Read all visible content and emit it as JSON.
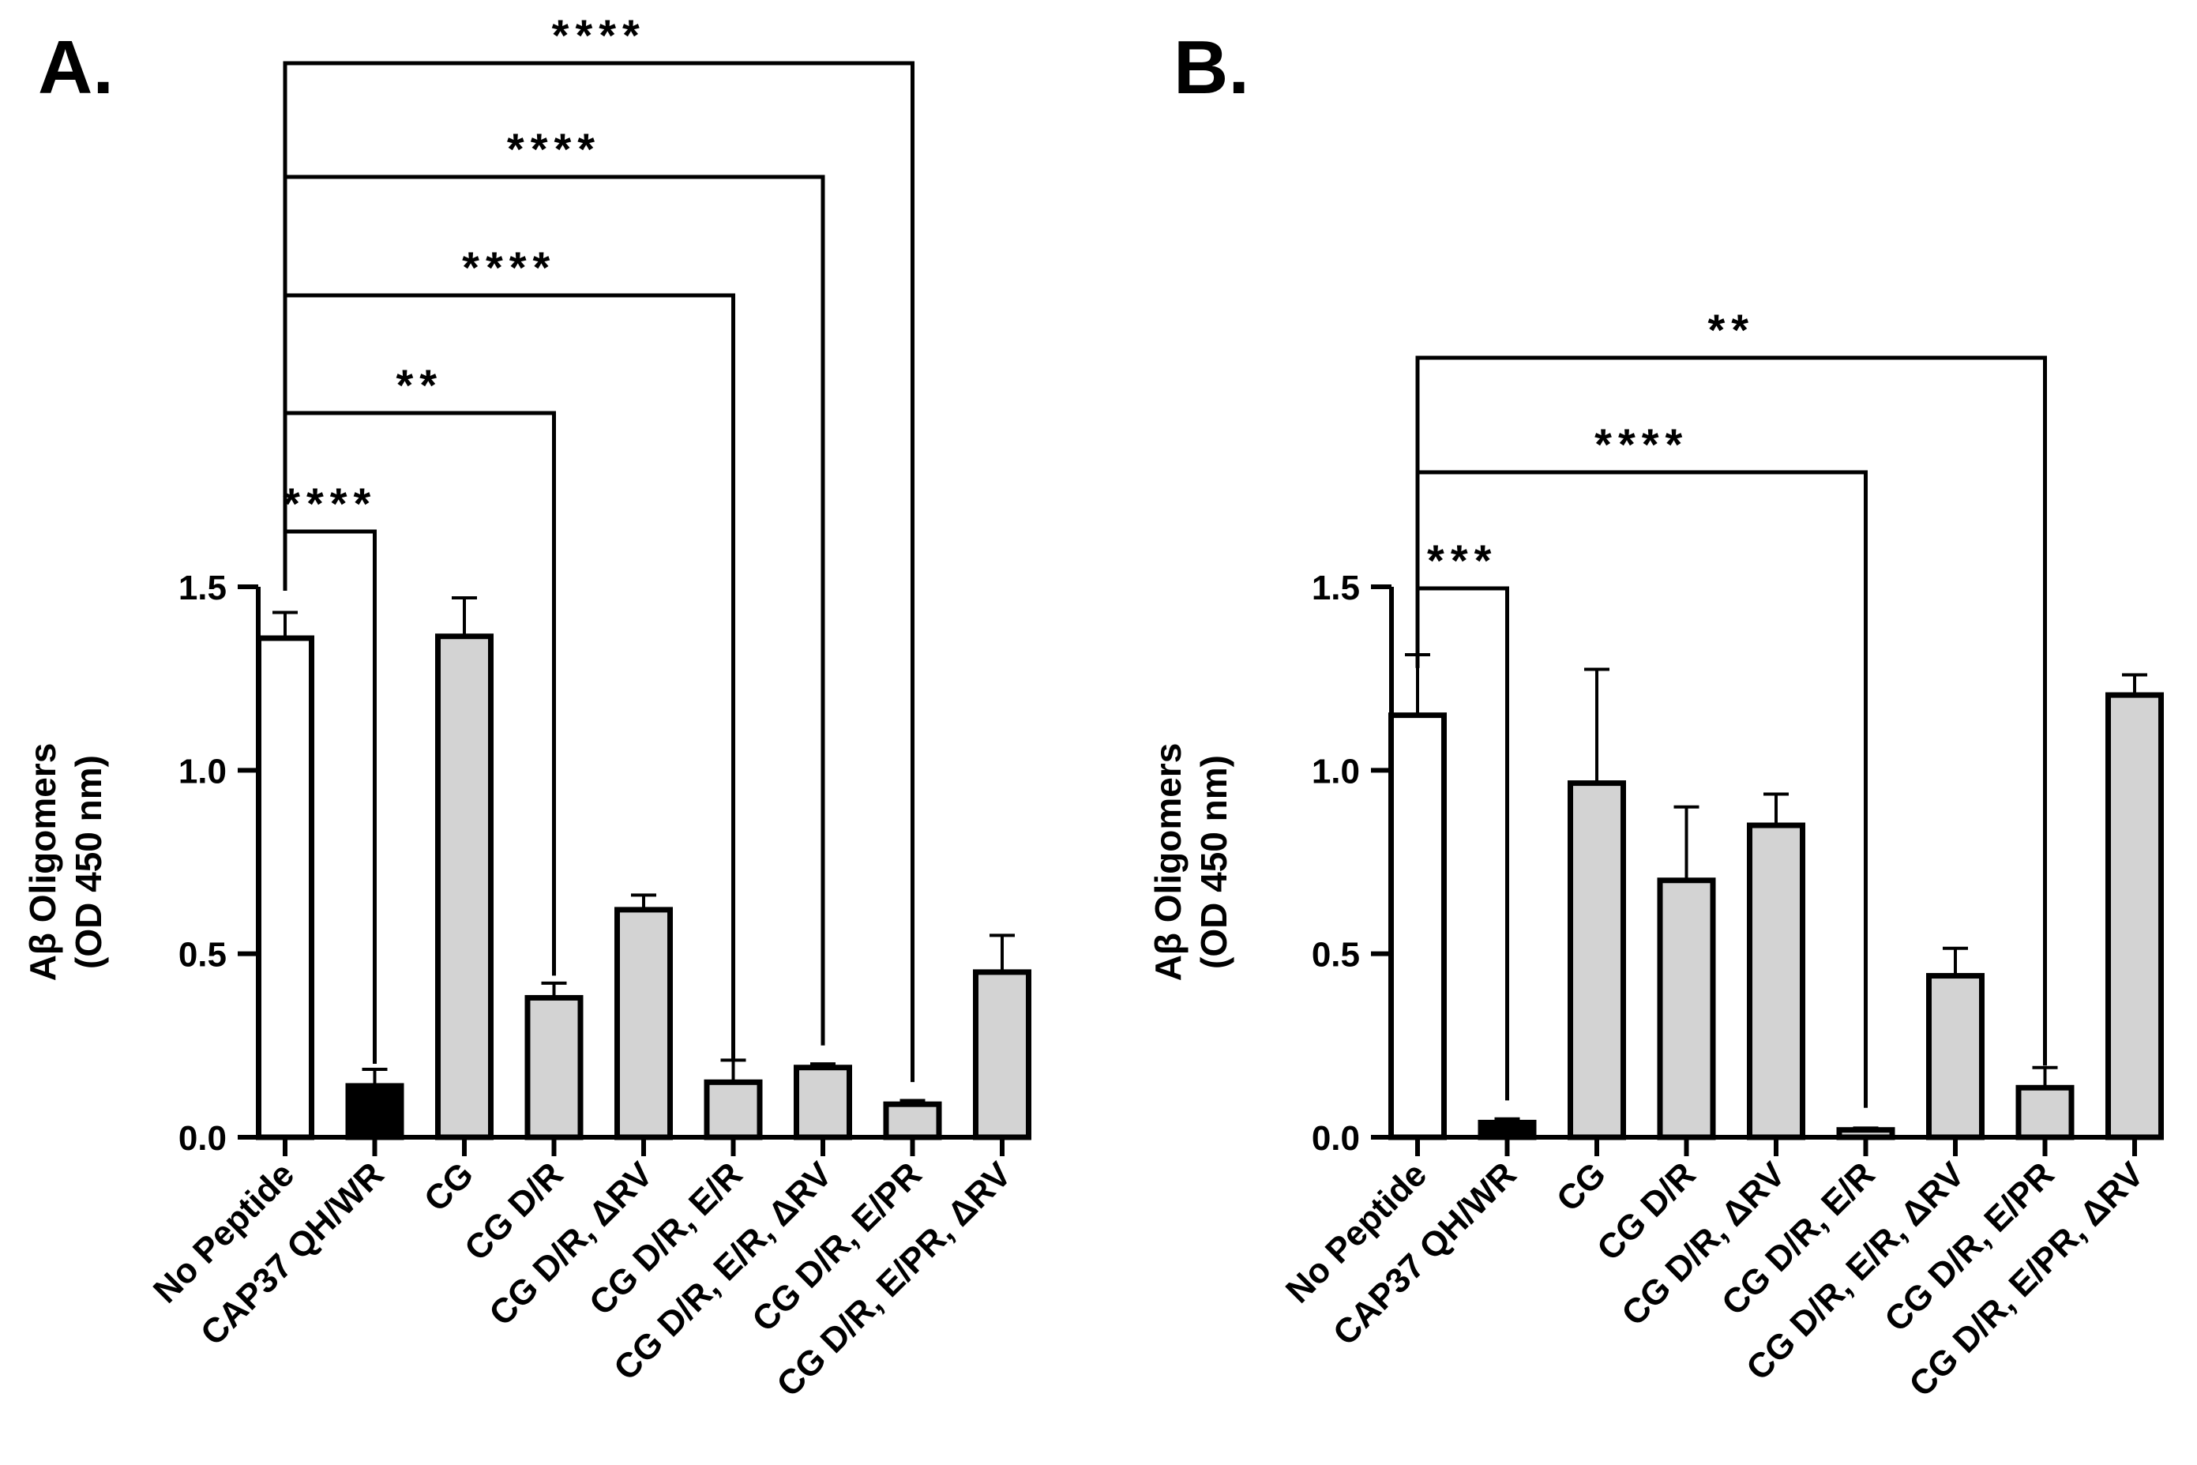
{
  "chart_data": [
    {
      "panel_label": "A.",
      "type": "bar",
      "ylabel_line1": "Aβ Oligomers",
      "ylabel_line2": "(OD 450 nm)",
      "ylim": [
        0,
        1.5
      ],
      "yticks": [
        "0.0",
        "0.5",
        "1.0",
        "1.5"
      ],
      "ytick_values": [
        0,
        0.5,
        1.0,
        1.5
      ],
      "categories": [
        "No Peptide",
        "CAP37 QH/WR",
        "CG",
        "CG D/R",
        "CG D/R, ΔRV",
        "CG D/R, E/R",
        "CG D/R, E/R, ΔRV",
        "CG D/R, E/PR",
        "CG D/R, E/PR, ΔRV"
      ],
      "values": [
        1.36,
        0.14,
        1.365,
        0.38,
        0.62,
        0.15,
        0.19,
        0.09,
        0.45
      ],
      "errors": [
        0.07,
        0.045,
        0.105,
        0.04,
        0.04,
        0.06,
        0.01,
        0.01,
        0.1
      ],
      "fills": [
        "#ffffff",
        "#000000",
        "#d3d3d3",
        "#d3d3d3",
        "#d3d3d3",
        "#d3d3d3",
        "#d3d3d3",
        "#d3d3d3",
        "#d3d3d3"
      ],
      "comparisons": [
        {
          "from": 0,
          "to": 1,
          "level": 0,
          "label": "****"
        },
        {
          "from": 0,
          "to": 3,
          "level": 1,
          "label": "**"
        },
        {
          "from": 0,
          "to": 5,
          "level": 2,
          "label": "****"
        },
        {
          "from": 0,
          "to": 6,
          "level": 3,
          "label": "****"
        },
        {
          "from": 0,
          "to": 7,
          "level": 4,
          "label": "****"
        }
      ]
    },
    {
      "panel_label": "B.",
      "type": "bar",
      "ylabel_line1": "Aβ Oligomers",
      "ylabel_line2": "(OD 450 nm)",
      "ylim": [
        0,
        1.5
      ],
      "yticks": [
        "0.0",
        "0.5",
        "1.0",
        "1.5"
      ],
      "ytick_values": [
        0,
        0.5,
        1.0,
        1.5
      ],
      "categories": [
        "No Peptide",
        "CAP37 QH/WR",
        "CG",
        "CG D/R",
        "CG D/R, ΔRV",
        "CG D/R, E/R",
        "CG D/R, E/R, ΔRV",
        "CG D/R, E/PR",
        "CG D/R, E/PR, ΔRV"
      ],
      "values": [
        1.15,
        0.04,
        0.965,
        0.7,
        0.85,
        0.02,
        0.44,
        0.135,
        1.205
      ],
      "errors": [
        0.165,
        0.01,
        0.31,
        0.2,
        0.085,
        0.005,
        0.075,
        0.055,
        0.055
      ],
      "fills": [
        "#ffffff",
        "#000000",
        "#d3d3d3",
        "#d3d3d3",
        "#d3d3d3",
        "#d3d3d3",
        "#d3d3d3",
        "#d3d3d3",
        "#d3d3d3"
      ],
      "comparisons": [
        {
          "from": 0,
          "to": 1,
          "level": 0,
          "label": "***"
        },
        {
          "from": 0,
          "to": 5,
          "level": 1,
          "label": "****"
        },
        {
          "from": 0,
          "to": 7,
          "level": 2,
          "label": "**"
        }
      ]
    }
  ]
}
